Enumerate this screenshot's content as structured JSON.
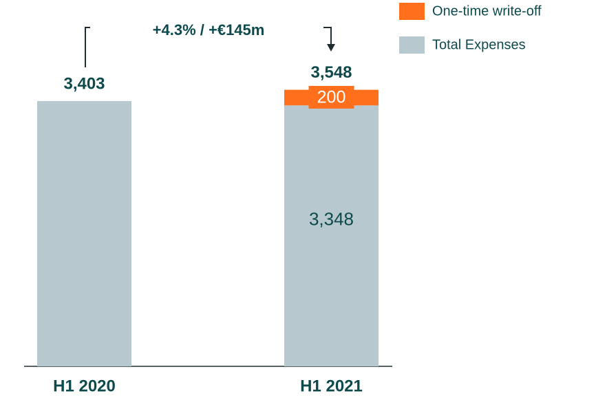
{
  "chart_data": {
    "type": "stacked_bar",
    "categories": [
      "H1 2020",
      "H1 2021"
    ],
    "series": [
      {
        "name": "Total Expenses",
        "color": "#b7c8ce",
        "values": [
          3403,
          3348
        ],
        "value_labels": [
          null,
          "3,348"
        ]
      },
      {
        "name": "One-time write-off",
        "color": "#ff6f1c",
        "values": [
          null,
          200
        ],
        "value_labels": [
          null,
          "200"
        ]
      }
    ],
    "total_labels": [
      "3,403",
      "3,548"
    ],
    "annotation": "+4.3% / +€145m",
    "ylim": [
      0,
      4700
    ]
  }
}
